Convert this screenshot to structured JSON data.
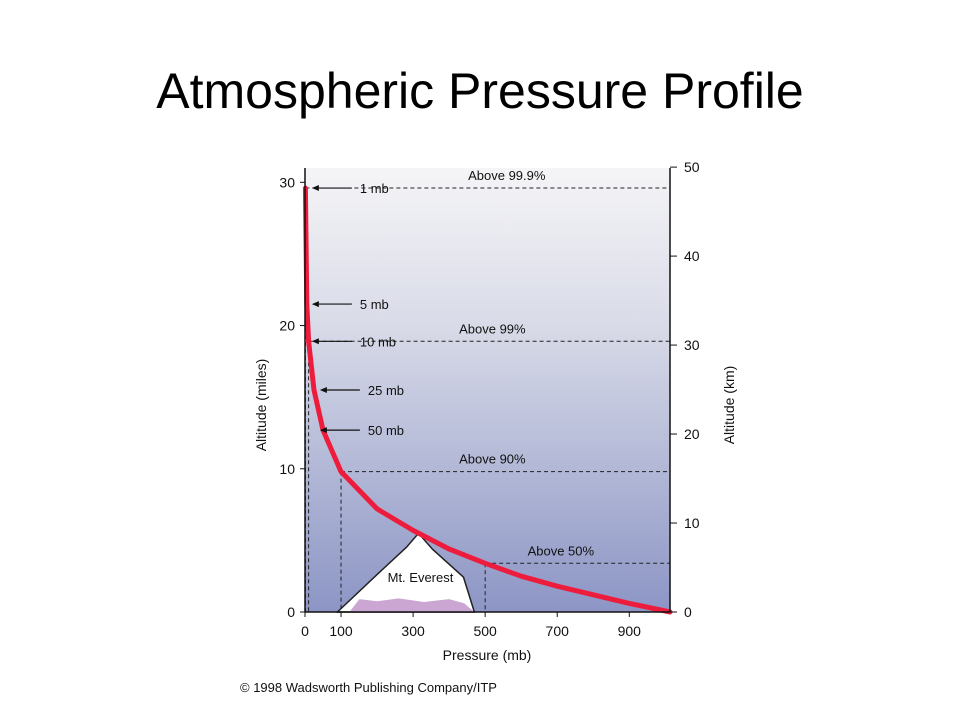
{
  "slide": {
    "title": "Atmospheric Pressure Profile",
    "credit": "© 1998 Wadsworth Publishing Company/ITP"
  },
  "chart_data": {
    "type": "line",
    "title": "Atmospheric Pressure Profile",
    "xlabel": "Pressure (mb)",
    "ylabel": "Altitude (miles)",
    "y2label": "Altitude (km)",
    "xlim": [
      0,
      1013
    ],
    "ylim": [
      0,
      31
    ],
    "y2lim": [
      0,
      49.9
    ],
    "x_ticks": [
      "0",
      "100",
      "300",
      "500",
      "700",
      "900"
    ],
    "x_tick_values": [
      0,
      100,
      300,
      500,
      700,
      900
    ],
    "y_ticks": [
      "0",
      "10",
      "20",
      "30"
    ],
    "y_tick_values": [
      0,
      10,
      20,
      30
    ],
    "y2_ticks": [
      "0",
      "10",
      "20",
      "30",
      "40",
      "50"
    ],
    "y2_tick_values": [
      0,
      10,
      20,
      30,
      40,
      50
    ],
    "colors": {
      "curve": "#ee1c3c",
      "sky_top": "#f4f4f6",
      "sky_bottom": "#8f98c6",
      "mountain_snow": "#ffffff",
      "mountain_base": "#cba6d3"
    },
    "series": [
      {
        "x": [
          1,
          5,
          10,
          25,
          50,
          100,
          200,
          300,
          400,
          500,
          600,
          700,
          800,
          900,
          1013
        ],
        "y": [
          29.6,
          21.5,
          18.9,
          15.5,
          12.7,
          9.8,
          7.2,
          5.7,
          4.4,
          3.4,
          2.5,
          1.8,
          1.2,
          0.6,
          0
        ]
      }
    ],
    "pressure_labels": [
      {
        "text": "1 mb",
        "y": 29.6
      },
      {
        "text": "5 mb",
        "y": 21.5
      },
      {
        "text": "10 mb",
        "y": 18.9
      },
      {
        "text": "25 mb",
        "y": 15.5
      },
      {
        "text": "50 mb",
        "y": 12.7
      }
    ],
    "mass_fraction_lines": [
      {
        "text": "Above 99.9%",
        "y": 29.6,
        "x": 1
      },
      {
        "text": "Above 99%",
        "y": 18.9,
        "x": 10
      },
      {
        "text": "Above 90%",
        "y": 9.8,
        "x": 100
      },
      {
        "text": "Above 50%",
        "y": 3.4,
        "x": 500
      }
    ],
    "annotations": [
      {
        "text": "Mt. Everest",
        "peak_x": 315,
        "peak_y": 5.5
      }
    ]
  }
}
